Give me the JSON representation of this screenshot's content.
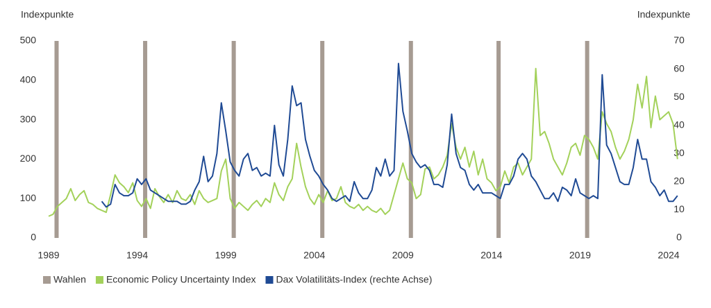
{
  "chart_data": {
    "type": "line",
    "y_label": "Indexpunkte",
    "y2_label": "Indexpunkte",
    "xlim": [
      1989,
      2024.5
    ],
    "xticks": [
      1989,
      1994,
      1999,
      2004,
      2009,
      2014,
      2019,
      2024
    ],
    "ylim": [
      0,
      500
    ],
    "yticks": [
      0,
      100,
      200,
      300,
      400,
      500
    ],
    "y2lim": [
      0,
      70
    ],
    "y2ticks": [
      0,
      10,
      20,
      30,
      40,
      50,
      60,
      70
    ],
    "events": {
      "name": "Wahlen",
      "color": "#a69b92",
      "x": [
        1989.45,
        1994.45,
        1999.45,
        2004.45,
        2009.45,
        2014.4,
        2019.4
      ]
    },
    "x": [
      1989,
      1989.25,
      1989.5,
      1989.75,
      1990,
      1990.25,
      1990.5,
      1990.75,
      1991,
      1991.25,
      1991.5,
      1991.75,
      1992,
      1992.25,
      1992.5,
      1992.75,
      1993,
      1993.25,
      1993.5,
      1993.75,
      1994,
      1994.25,
      1994.5,
      1994.75,
      1995,
      1995.25,
      1995.5,
      1995.75,
      1996,
      1996.25,
      1996.5,
      1996.75,
      1997,
      1997.25,
      1997.5,
      1997.75,
      1998,
      1998.25,
      1998.5,
      1998.75,
      1999,
      1999.25,
      1999.5,
      1999.75,
      2000,
      2000.25,
      2000.5,
      2000.75,
      2001,
      2001.25,
      2001.5,
      2001.75,
      2002,
      2002.25,
      2002.5,
      2002.75,
      2003,
      2003.25,
      2003.5,
      2003.75,
      2004,
      2004.25,
      2004.5,
      2004.75,
      2005,
      2005.25,
      2005.5,
      2005.75,
      2006,
      2006.25,
      2006.5,
      2006.75,
      2007,
      2007.25,
      2007.5,
      2007.75,
      2008,
      2008.25,
      2008.5,
      2008.75,
      2009,
      2009.25,
      2009.5,
      2009.75,
      2010,
      2010.25,
      2010.5,
      2010.75,
      2011,
      2011.25,
      2011.5,
      2011.75,
      2012,
      2012.25,
      2012.5,
      2012.75,
      2013,
      2013.25,
      2013.5,
      2013.75,
      2014,
      2014.25,
      2014.5,
      2014.75,
      2015,
      2015.25,
      2015.5,
      2015.75,
      2016,
      2016.25,
      2016.5,
      2016.75,
      2017,
      2017.25,
      2017.5,
      2017.75,
      2018,
      2018.25,
      2018.5,
      2018.75,
      2019,
      2019.25,
      2019.5,
      2019.75,
      2020,
      2020.25,
      2020.5,
      2020.75,
      2021,
      2021.25,
      2021.5,
      2021.75,
      2022,
      2022.25,
      2022.5,
      2022.75,
      2023,
      2023.25,
      2023.5,
      2023.75,
      2024,
      2024.25,
      2024.5
    ],
    "series": [
      {
        "name": "Economic Policy Uncertainty Index",
        "color": "#a3d15a",
        "values": [
          55,
          60,
          80,
          90,
          100,
          125,
          95,
          110,
          120,
          90,
          85,
          75,
          70,
          65,
          110,
          160,
          140,
          130,
          115,
          140,
          95,
          80,
          100,
          75,
          125,
          105,
          90,
          110,
          90,
          120,
          100,
          95,
          110,
          85,
          120,
          100,
          90,
          95,
          100,
          170,
          200,
          100,
          75,
          90,
          80,
          70,
          85,
          95,
          80,
          100,
          90,
          140,
          110,
          95,
          130,
          150,
          240,
          180,
          130,
          100,
          85,
          110,
          90,
          120,
          95,
          100,
          130,
          90,
          80,
          75,
          85,
          70,
          80,
          70,
          65,
          75,
          60,
          70,
          110,
          150,
          190,
          150,
          140,
          100,
          110,
          175,
          180,
          150,
          160,
          180,
          210,
          290,
          230,
          200,
          230,
          180,
          220,
          160,
          200,
          150,
          140,
          120,
          130,
          170,
          140,
          180,
          190,
          160,
          180,
          200,
          430,
          260,
          270,
          240,
          200,
          180,
          160,
          190,
          230,
          240,
          210,
          260,
          250,
          230,
          200,
          320,
          290,
          270,
          230,
          200,
          220,
          250,
          300,
          390,
          330,
          410,
          280,
          360,
          300,
          310,
          320,
          290,
          200
        ]
      },
      {
        "name": "Dax Volatilitäts-Index (rechte Achse)",
        "color": "#1f4a94",
        "axis": "y2",
        "values": [
          null,
          null,
          null,
          null,
          null,
          null,
          null,
          null,
          null,
          null,
          null,
          null,
          13,
          11,
          12,
          19,
          16,
          15,
          15,
          16,
          21,
          19,
          21,
          17,
          16,
          15,
          14,
          13,
          13,
          13,
          12,
          12,
          13,
          17,
          20,
          29,
          20,
          22,
          30,
          48,
          38,
          27,
          24,
          22,
          28,
          30,
          24,
          25,
          22,
          23,
          22,
          40,
          26,
          22,
          35,
          54,
          47,
          48,
          35,
          29,
          24,
          22,
          19,
          17,
          14,
          13,
          14,
          15,
          13,
          20,
          16,
          14,
          14,
          17,
          25,
          22,
          28,
          22,
          24,
          62,
          45,
          38,
          30,
          27,
          25,
          26,
          24,
          19,
          19,
          18,
          26,
          44,
          30,
          25,
          24,
          19,
          17,
          19,
          16,
          16,
          16,
          15,
          14,
          19,
          19,
          22,
          28,
          30,
          28,
          22,
          20,
          17,
          14,
          14,
          16,
          13,
          18,
          17,
          15,
          21,
          16,
          15,
          14,
          15,
          14,
          58,
          33,
          30,
          25,
          20,
          19,
          19,
          25,
          35,
          28,
          28,
          20,
          18,
          15,
          17,
          13,
          13,
          15
        ]
      }
    ]
  }
}
